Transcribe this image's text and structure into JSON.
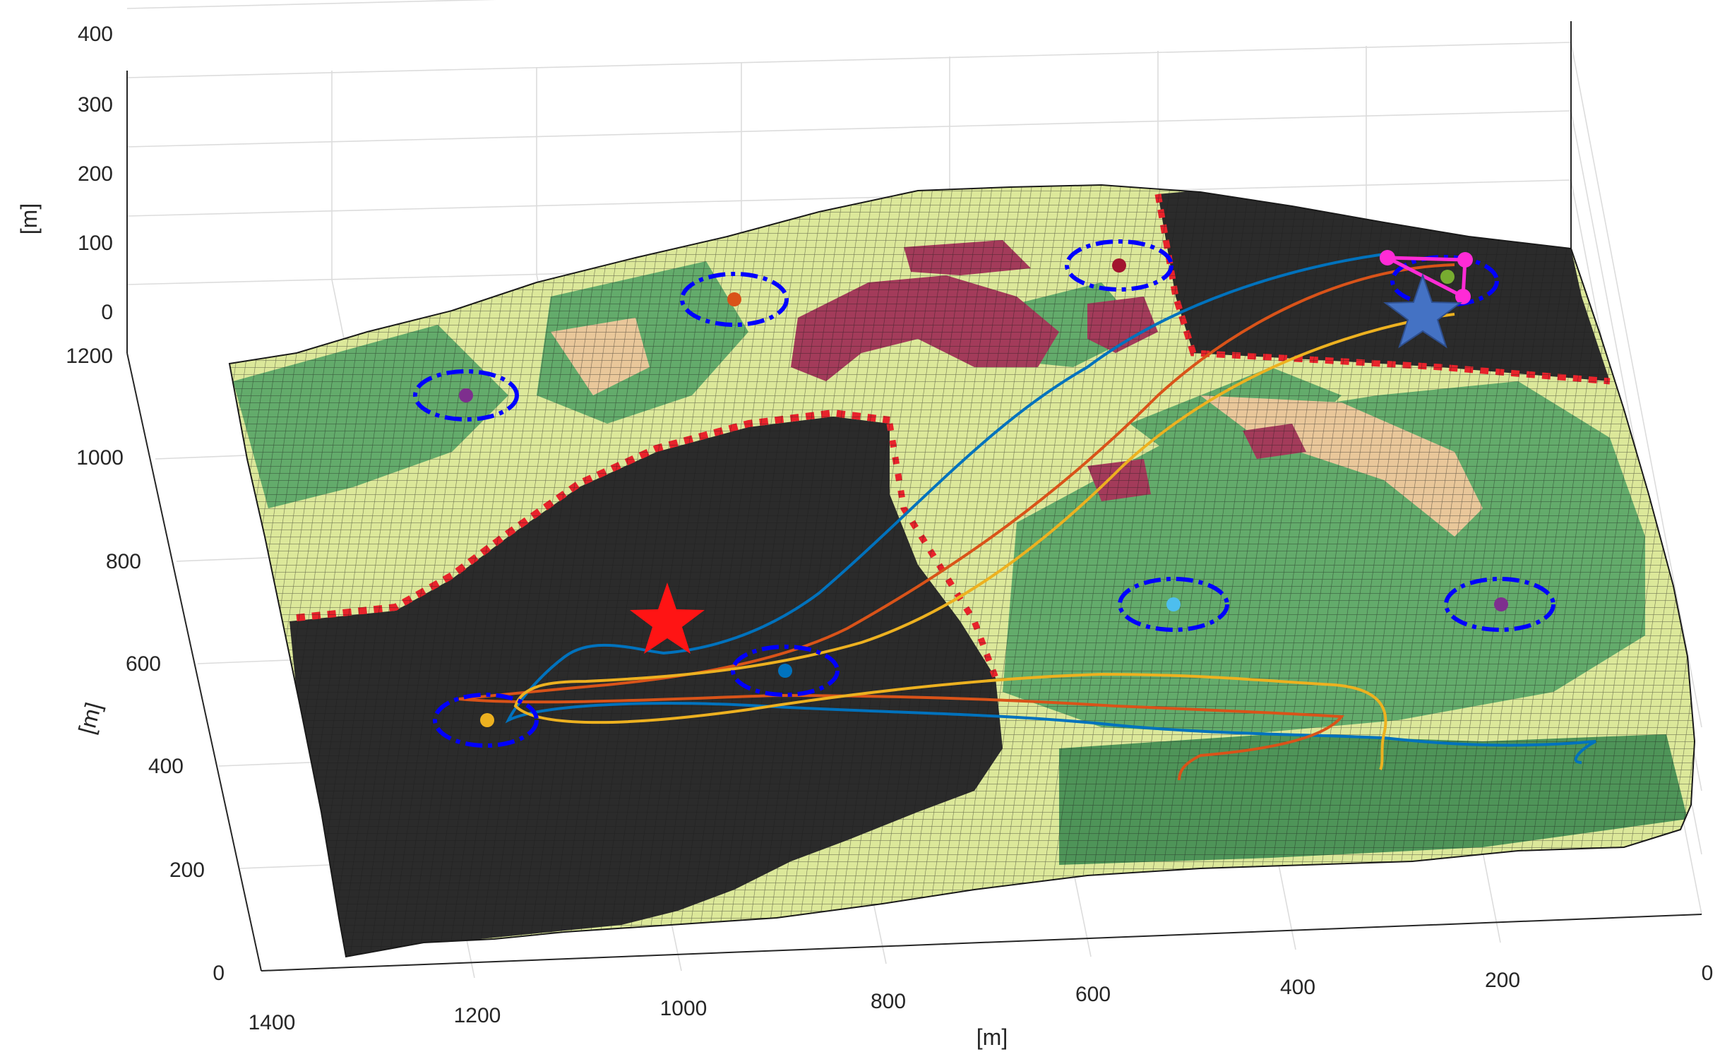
{
  "chart_data": {
    "type": "surface-3d",
    "axes": {
      "x": {
        "label": "[m]",
        "ticks": [
          "1400",
          "1200",
          "1000",
          "800",
          "600",
          "400",
          "200",
          "0"
        ],
        "range": [
          0,
          1400
        ]
      },
      "y": {
        "label": "[m]",
        "ticks": [
          "0",
          "200",
          "400",
          "600",
          "800",
          "1000",
          "1200"
        ],
        "range": [
          0,
          1200
        ]
      },
      "z": {
        "label": "[m]",
        "ticks": [
          "0",
          "100",
          "200",
          "300",
          "400"
        ],
        "range": [
          0,
          400
        ]
      }
    },
    "grid": true,
    "surface_colors": {
      "burned": "#2b2b2b",
      "fire_front": "#e8232b",
      "grass": "#dce89a",
      "forest": "#63ab6b",
      "dense_forest": "#4e9458",
      "shrub": "#a33b5a",
      "bare": "#e9c79a",
      "mesh_lines": "#1a1a1a"
    },
    "markers": {
      "fire_origin": {
        "shape": "star",
        "color": "#ff1414",
        "x": 1000,
        "y": 760
      },
      "base_station": {
        "shape": "star",
        "color": "#4472c4",
        "x": 170,
        "y": 1170
      }
    },
    "waypoints": [
      {
        "x": 1180,
        "y": 520,
        "color": "#edb120"
      },
      {
        "x": 1150,
        "y": 1000,
        "color": "#7e2f8e"
      },
      {
        "x": 880,
        "y": 1140,
        "color": "#d95319"
      },
      {
        "x": 580,
        "y": 1200,
        "color": "#a2142f"
      },
      {
        "x": 860,
        "y": 600,
        "color": "#0072bd"
      },
      {
        "x": 480,
        "y": 720,
        "color": "#4dbeee"
      },
      {
        "x": 120,
        "y": 760,
        "color": "#7e2f8e"
      },
      {
        "x": 160,
        "y": 1210,
        "color": "#77ac30"
      }
    ],
    "drone_start_color": "#ff2bd6",
    "series": [
      {
        "color": "#0072bd"
      },
      {
        "color": "#d95319"
      },
      {
        "color": "#edb120"
      }
    ]
  }
}
